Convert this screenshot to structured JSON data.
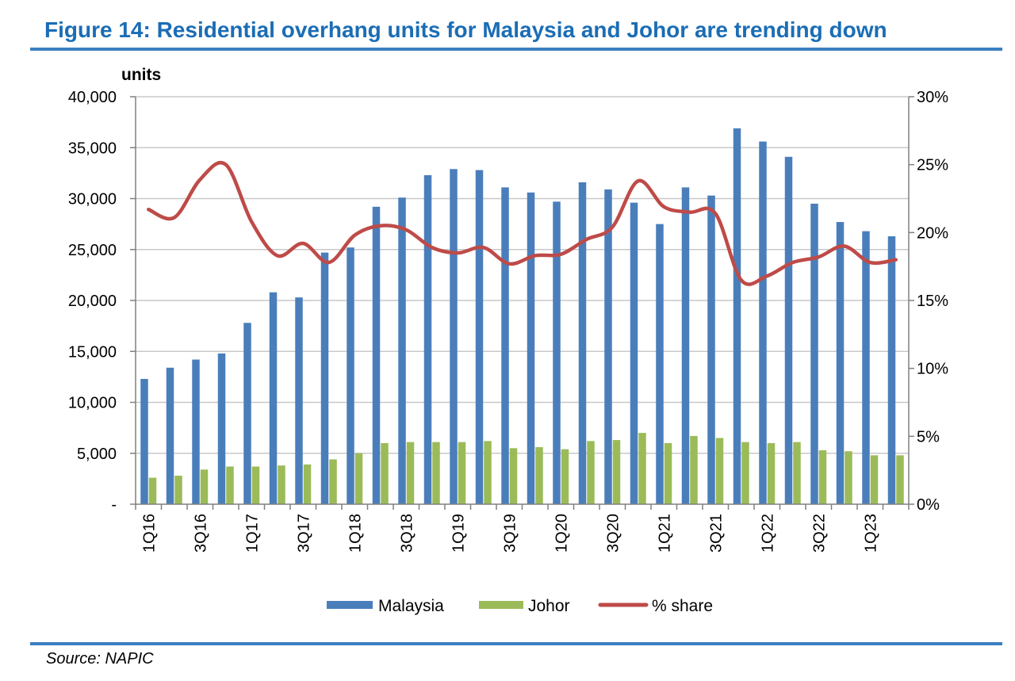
{
  "header": {
    "title": "Figure 14: Residential overhang units for Malaysia and Johor are trending down"
  },
  "footer": {
    "source": "Source: NAPIC"
  },
  "colors": {
    "malaysia": "#4a7ebb",
    "johor": "#9bbb59",
    "share": "#be4b48",
    "title": "#1b6db5",
    "rule": "#3b7fc1"
  },
  "chart_data": {
    "type": "bar",
    "ylabel": "units",
    "ylim": [
      0,
      40000
    ],
    "y_ticks": [
      "-",
      "5,000",
      "10,000",
      "15,000",
      "20,000",
      "25,000",
      "30,000",
      "35,000",
      "40,000"
    ],
    "y2lim": [
      0,
      30
    ],
    "y2_ticks": [
      "0%",
      "5%",
      "10%",
      "15%",
      "20%",
      "25%",
      "30%"
    ],
    "grid": true,
    "legend_position": "bottom",
    "categories": [
      "1Q16",
      "2Q16",
      "3Q16",
      "4Q16",
      "1Q17",
      "2Q17",
      "3Q17",
      "4Q17",
      "1Q18",
      "2Q18",
      "3Q18",
      "4Q18",
      "1Q19",
      "2Q19",
      "3Q19",
      "4Q19",
      "1Q20",
      "2Q20",
      "3Q20",
      "4Q20",
      "1Q21",
      "2Q21",
      "3Q21",
      "4Q21",
      "1Q22",
      "2Q22",
      "3Q22",
      "4Q22",
      "1Q23",
      "2Q23"
    ],
    "x_tick_labels": [
      "1Q16",
      "",
      "3Q16",
      "",
      "1Q17",
      "",
      "3Q17",
      "",
      "1Q18",
      "",
      "3Q18",
      "",
      "1Q19",
      "",
      "3Q19",
      "",
      "1Q20",
      "",
      "3Q20",
      "",
      "1Q21",
      "",
      "3Q21",
      "",
      "1Q22",
      "",
      "3Q22",
      "",
      "1Q23",
      ""
    ],
    "series": [
      {
        "name": "Malaysia",
        "type": "bar",
        "axis": "left",
        "values": [
          12300,
          13400,
          14200,
          14800,
          17800,
          20800,
          20300,
          24700,
          25200,
          29200,
          30100,
          32300,
          32900,
          32800,
          31100,
          30600,
          29700,
          31600,
          30900,
          29600,
          27500,
          31100,
          30300,
          36900,
          35600,
          34100,
          29500,
          27700,
          26800,
          26300
        ]
      },
      {
        "name": "Johor",
        "type": "bar",
        "axis": "left",
        "values": [
          2600,
          2800,
          3400,
          3700,
          3700,
          3800,
          3900,
          4400,
          5000,
          6000,
          6100,
          6100,
          6100,
          6200,
          5500,
          5600,
          5400,
          6200,
          6300,
          7000,
          6000,
          6700,
          6500,
          6100,
          6000,
          6100,
          5300,
          5200,
          4800,
          4800
        ]
      },
      {
        "name": "% share",
        "type": "line",
        "axis": "right",
        "values": [
          21.7,
          21.1,
          23.9,
          25.0,
          20.8,
          18.3,
          19.2,
          17.8,
          19.8,
          20.5,
          20.2,
          18.9,
          18.5,
          18.9,
          17.7,
          18.3,
          18.4,
          19.5,
          20.4,
          23.8,
          21.9,
          21.5,
          21.4,
          16.5,
          16.8,
          17.8,
          18.2,
          19.0,
          17.8,
          18.0
        ]
      }
    ]
  }
}
